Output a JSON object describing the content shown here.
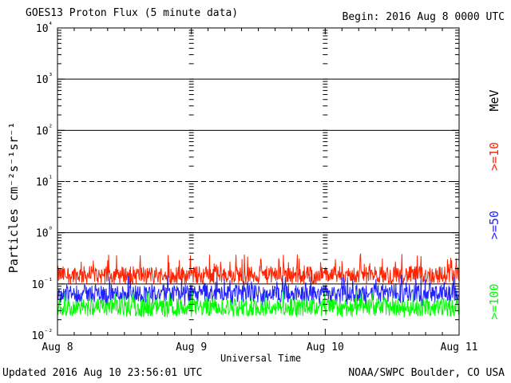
{
  "header": {
    "title": "GOES13 Proton Flux (5 minute data)",
    "begin": "Begin: 2016 Aug 8 0000 UTC"
  },
  "footer": {
    "updated": "Updated 2016 Aug 10 23:56:01 UTC",
    "credit": "NOAA/SWPC Boulder, CO USA"
  },
  "chart_data": {
    "type": "line",
    "title": "GOES13 Proton Flux (5 minute data)",
    "xlabel": "Universal Time",
    "ylabel": "Particles cm⁻²s⁻¹sr⁻¹",
    "y_scale": "log",
    "ylim": [
      0.01,
      10000
    ],
    "y_ticks": [
      {
        "value": 0.01,
        "label": "10⁻²"
      },
      {
        "value": 0.1,
        "label": "10⁻¹"
      },
      {
        "value": 1,
        "label": "10⁰"
      },
      {
        "value": 10,
        "label": "10¹"
      },
      {
        "value": 100,
        "label": "10²"
      },
      {
        "value": 1000,
        "label": "10³"
      },
      {
        "value": 10000,
        "label": "10⁴"
      }
    ],
    "x_ticks": [
      "Aug 8",
      "Aug 9",
      "Aug 10",
      "Aug 11"
    ],
    "xlim_days": [
      "2016-08-08",
      "2016-08-11"
    ],
    "energy_unit": "MeV",
    "series": [
      {
        "name": ">=10",
        "color": "#ff2200",
        "typical": 0.15,
        "range": [
          0.1,
          0.4
        ]
      },
      {
        "name": ">=50",
        "color": "#2222ff",
        "typical": 0.065,
        "range": [
          0.035,
          0.15
        ]
      },
      {
        "name": ">=100",
        "color": "#00ff00",
        "typical": 0.035,
        "range": [
          0.022,
          0.08
        ]
      }
    ],
    "colors": {
      "axis": "#000000",
      "dashed_level": "10¹"
    }
  }
}
